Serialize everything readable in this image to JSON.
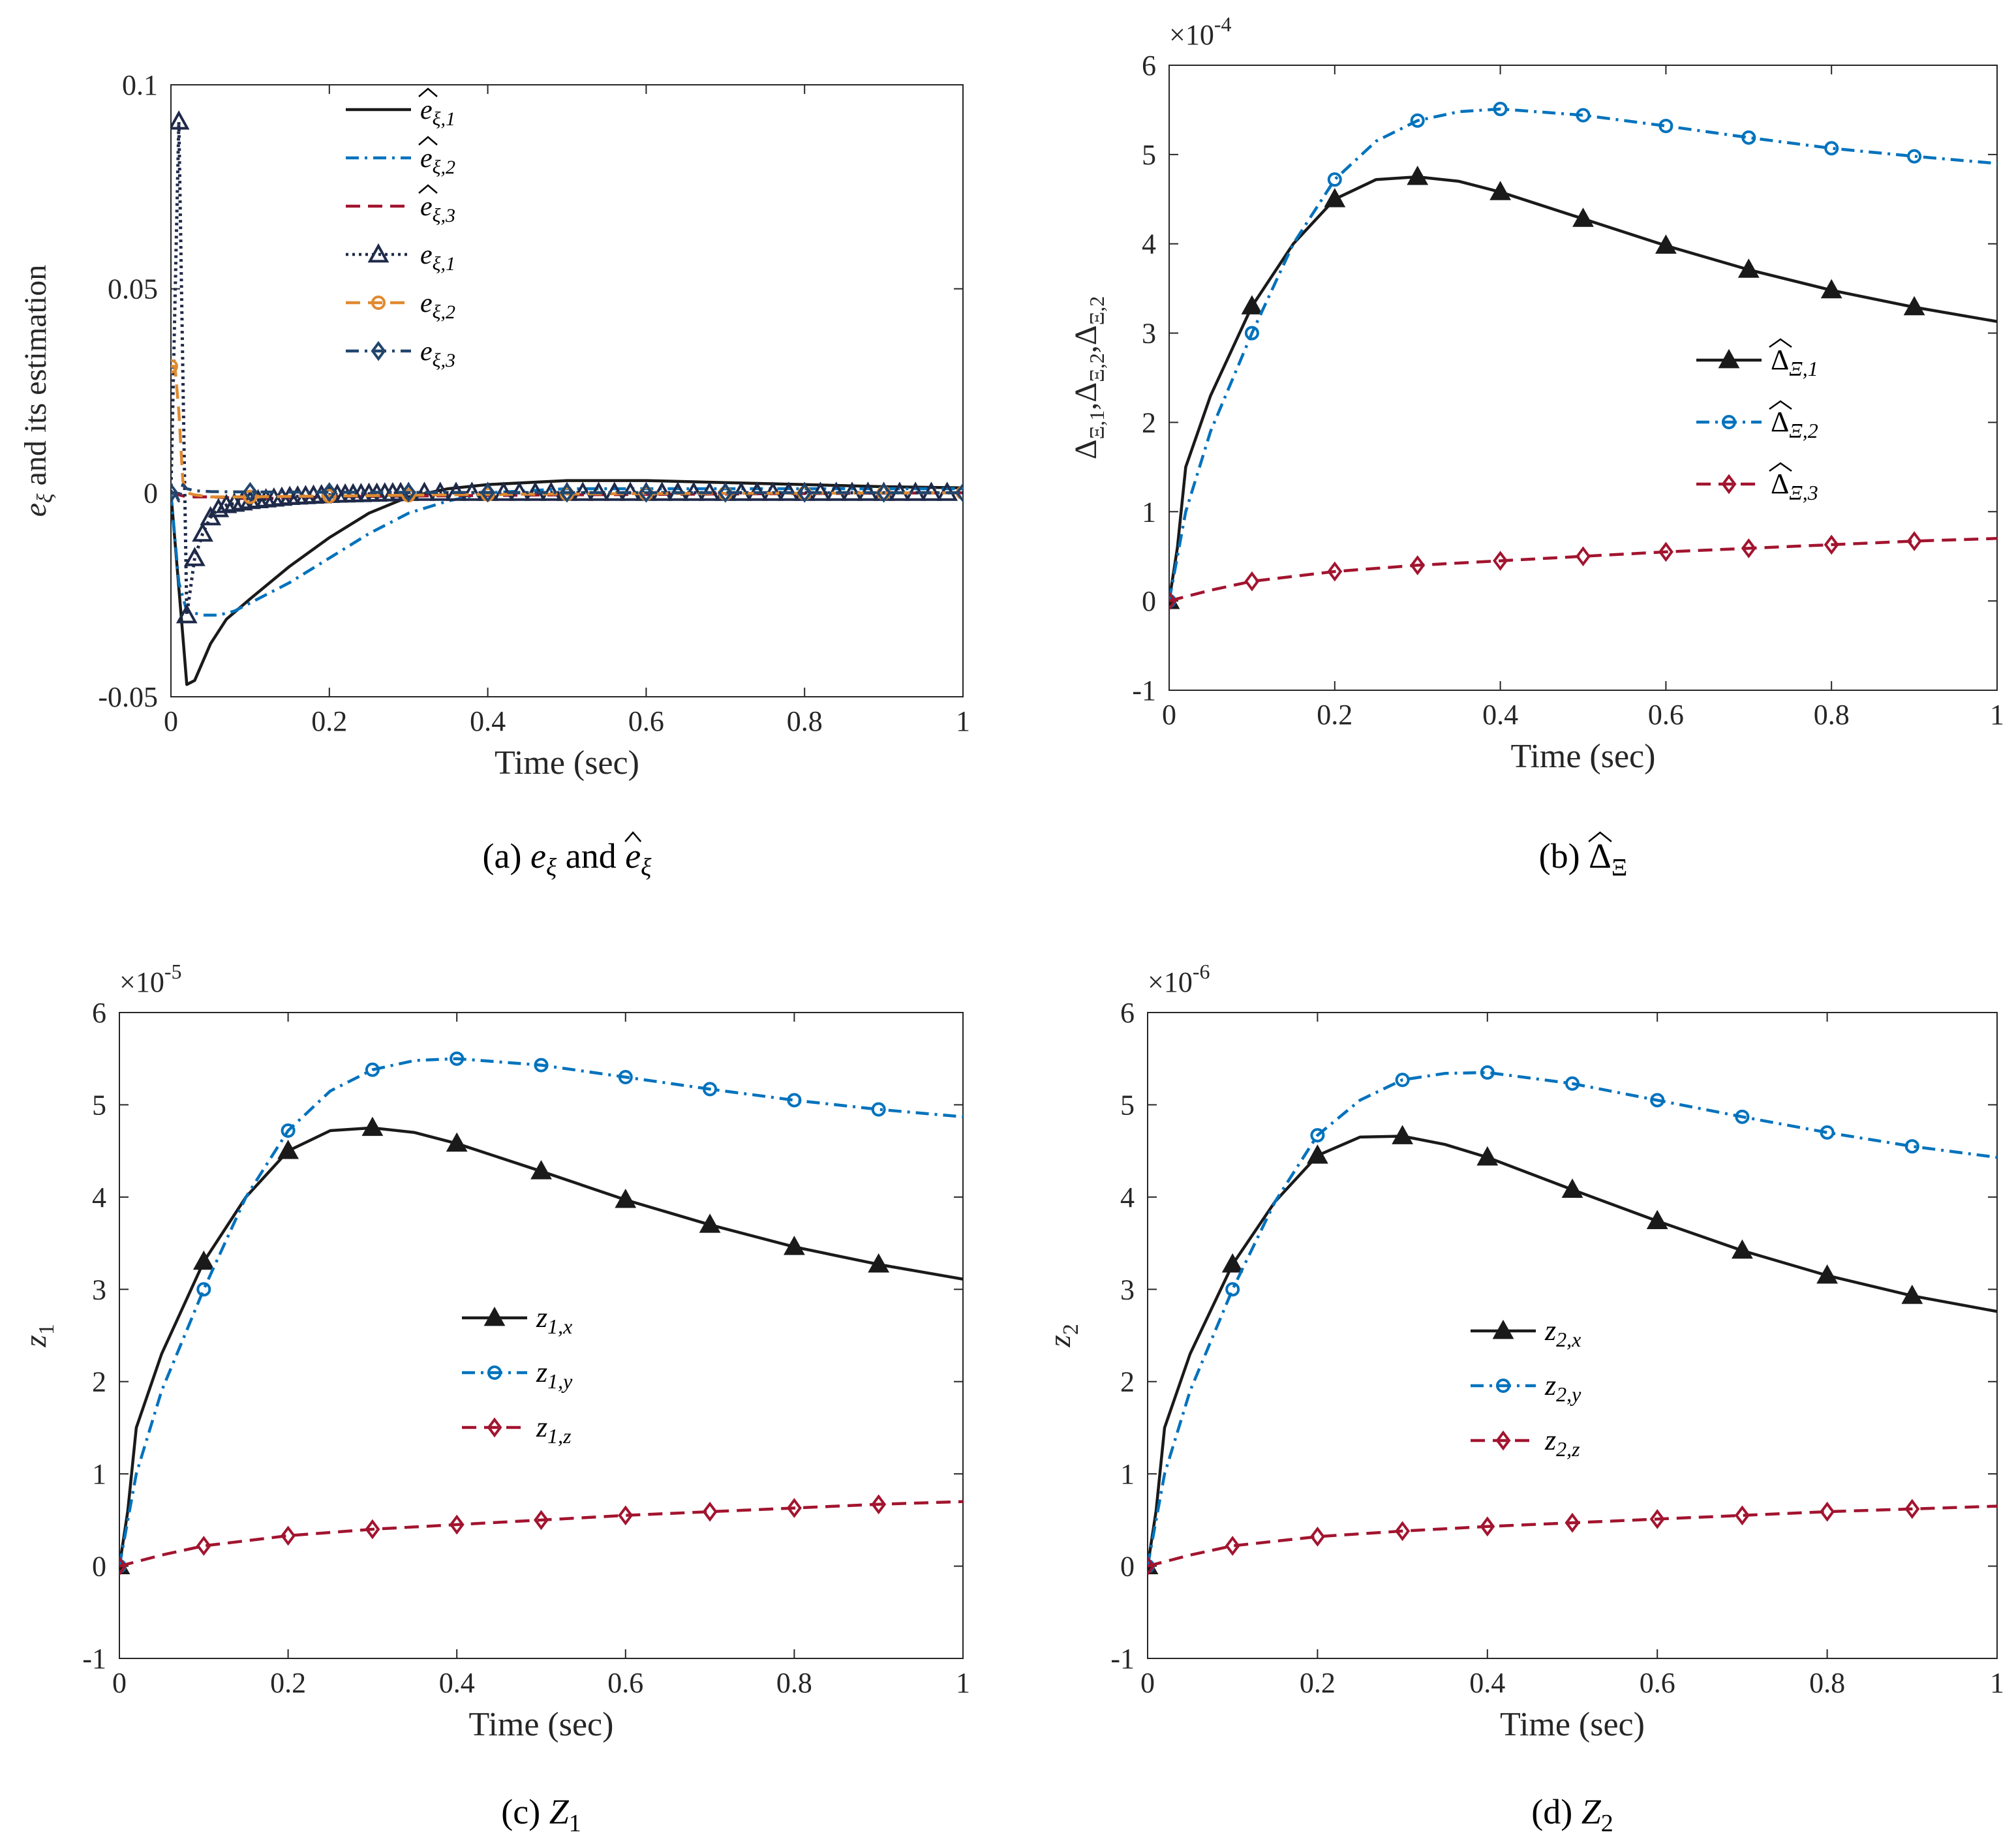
{
  "chart_data": [
    {
      "type": "line",
      "caption": "(a)  e_ξ and ê_ξ",
      "caption_parts": [
        "(a)",
        "e",
        "ξ",
        "and",
        "e",
        "ξ"
      ],
      "xlabel": "Time (sec)",
      "ylabel": "e_ξ and its estimation",
      "ylabel_parts": [
        "e",
        "ξ",
        "and its estimation"
      ],
      "multiplier": "",
      "xlim": [
        0,
        1
      ],
      "ylim": [
        -0.05,
        0.1
      ],
      "xticks": [
        0,
        0.2,
        0.4,
        0.6,
        0.8,
        1
      ],
      "xtick_labels": [
        "0",
        "0.2",
        "0.4",
        "0.6",
        "0.8",
        "1"
      ],
      "yticks": [
        -0.05,
        0,
        0.05,
        0.1
      ],
      "ytick_labels": [
        "-0.05",
        "0",
        "0.05",
        "0.1"
      ],
      "legend_position": "top-center",
      "series": [
        {
          "name": "ê_ξ,1",
          "label_main": "e",
          "label_sub": "ξ,1",
          "hat": true,
          "color": "#1a1a1a",
          "dash": "solid",
          "marker": "none",
          "x": [
            0,
            0.015,
            0.02,
            0.03,
            0.05,
            0.07,
            0.1,
            0.15,
            0.2,
            0.25,
            0.3,
            0.35,
            0.4,
            0.5,
            0.6,
            0.7,
            0.8,
            0.9,
            1.0
          ],
          "y": [
            0,
            -0.035,
            -0.047,
            -0.046,
            -0.037,
            -0.031,
            -0.026,
            -0.018,
            -0.011,
            -0.005,
            -0.001,
            0.001,
            0.002,
            0.003,
            0.003,
            0.0025,
            0.002,
            0.0015,
            0.0012
          ]
        },
        {
          "name": "ê_ξ,2",
          "label_main": "e",
          "label_sub": "ξ,2",
          "hat": true,
          "color": "#0072bd",
          "dash": "dashdot",
          "marker": "none",
          "x": [
            0,
            0.01,
            0.02,
            0.04,
            0.06,
            0.08,
            0.1,
            0.15,
            0.2,
            0.25,
            0.3,
            0.35,
            0.4,
            0.5,
            0.6,
            0.7,
            0.8,
            0.9,
            1.0
          ],
          "y": [
            0,
            -0.022,
            -0.029,
            -0.03,
            -0.03,
            -0.029,
            -0.027,
            -0.022,
            -0.016,
            -0.01,
            -0.005,
            -0.002,
            0,
            0.001,
            0.001,
            0.001,
            0.001,
            0.001,
            0.001
          ]
        },
        {
          "name": "ê_ξ,3",
          "label_main": "e",
          "label_sub": "ξ,3",
          "hat": true,
          "color": "#a2142f",
          "dash": "dashed",
          "marker": "none",
          "x": [
            0,
            0.02,
            0.05,
            0.1,
            0.2,
            0.3,
            0.5,
            0.7,
            1.0
          ],
          "y": [
            0,
            -0.001,
            -0.001,
            -0.0015,
            -0.001,
            -0.0008,
            -0.0005,
            -0.0003,
            0
          ]
        },
        {
          "name": "e_ξ,1",
          "label_main": "e",
          "label_sub": "ξ,1",
          "hat": false,
          "color": "#1f2a4a",
          "dash": "dotted",
          "marker": "triangle",
          "x": [
            0,
            0.01,
            0.015,
            0.02,
            0.03,
            0.04,
            0.05,
            0.06,
            0.07,
            0.1,
            0.15,
            0.2,
            0.3,
            0.4,
            0.5,
            0.6,
            0.7,
            0.8,
            0.9,
            1.0
          ],
          "y": [
            0,
            0.091,
            0.03,
            -0.03,
            -0.016,
            -0.01,
            -0.006,
            -0.004,
            -0.003,
            -0.002,
            -0.001,
            -0.0005,
            0,
            0,
            0,
            0,
            0,
            0,
            0,
            0
          ],
          "markers_x": [
            0.01,
            0.02,
            0.03,
            0.04,
            0.05,
            0.06,
            0.07,
            0.08,
            0.09,
            0.1,
            0.11,
            0.12,
            0.13,
            0.14,
            0.15,
            0.16,
            0.17,
            0.18,
            0.19,
            0.2,
            0.21,
            0.22,
            0.23,
            0.24,
            0.25,
            0.26,
            0.27,
            0.28,
            0.29,
            0.3,
            0.32,
            0.34,
            0.36,
            0.38,
            0.4,
            0.42,
            0.44,
            0.46,
            0.48,
            0.5,
            0.52,
            0.54,
            0.56,
            0.58,
            0.6,
            0.62,
            0.64,
            0.66,
            0.68,
            0.7,
            0.72,
            0.74,
            0.76,
            0.78,
            0.8,
            0.82,
            0.84,
            0.86,
            0.88,
            0.9,
            0.92,
            0.94,
            0.96,
            0.98
          ]
        },
        {
          "name": "e_ξ,2",
          "label_main": "e",
          "label_sub": "ξ,2",
          "hat": false,
          "color": "#e08a30",
          "dash": "dashed",
          "marker": "circle",
          "x": [
            0,
            0.005,
            0.01,
            0.015,
            0.02,
            0.03,
            0.05,
            0.1,
            0.2,
            0.4,
            0.6,
            1.0
          ],
          "y": [
            0.031,
            0.031,
            0.02,
            0.003,
            0,
            -0.0005,
            -0.001,
            -0.001,
            -0.0008,
            -0.0004,
            -0.0002,
            0
          ],
          "markers_x": [
            0,
            0.1,
            0.2,
            0.3,
            0.4,
            0.5,
            0.6,
            0.7,
            0.8,
            0.9,
            1.0
          ]
        },
        {
          "name": "e_ξ,3",
          "label_main": "e",
          "label_sub": "ξ,3",
          "hat": false,
          "color": "#22466e",
          "dash": "dashdot",
          "marker": "diamond",
          "x": [
            0,
            0.005,
            0.01,
            0.015,
            0.02,
            0.03,
            0.05,
            0.1,
            0.3,
            0.6,
            1.0
          ],
          "y": [
            0,
            0,
            -0.002,
            0.002,
            0.001,
            0.0005,
            0.0003,
            0.0002,
            0.0001,
            0,
            0
          ],
          "markers_x": [
            0,
            0.1,
            0.2,
            0.3,
            0.4,
            0.5,
            0.6,
            0.7,
            0.8,
            0.9,
            1.0
          ]
        }
      ]
    },
    {
      "type": "line",
      "caption": "(b)  Δ̂_Ξ",
      "caption_parts": [
        "(b)",
        "Δ",
        "Ξ"
      ],
      "xlabel": "Time (sec)",
      "ylabel": "Δ̂_Ξ,1, Δ̂_Ξ,2, Δ̂_Ξ,2",
      "ylabel_parts": [
        "Δ",
        "Ξ,1",
        ",",
        "Δ",
        "Ξ,2",
        ",",
        "Δ",
        "Ξ,2"
      ],
      "multiplier": "×10⁻⁴",
      "multiplier_parts": [
        "×10",
        "-4"
      ],
      "xlim": [
        0,
        1
      ],
      "ylim": [
        -1,
        6
      ],
      "xticks": [
        0,
        0.2,
        0.4,
        0.6,
        0.8,
        1
      ],
      "xtick_labels": [
        "0",
        "0.2",
        "0.4",
        "0.6",
        "0.8",
        "1"
      ],
      "yticks": [
        -1,
        0,
        1,
        2,
        3,
        4,
        5,
        6
      ],
      "ytick_labels": [
        "-1",
        "0",
        "1",
        "2",
        "3",
        "4",
        "5",
        "6"
      ],
      "legend_position": "center-right",
      "series": [
        {
          "name": "Δ̂_Ξ,1",
          "label_main": "Δ",
          "label_sub": "Ξ,1",
          "hat": true,
          "color": "#1a1a1a",
          "dash": "solid",
          "marker": "triangle",
          "x": [
            0,
            0.01,
            0.02,
            0.05,
            0.1,
            0.15,
            0.2,
            0.25,
            0.3,
            0.35,
            0.4,
            0.5,
            0.6,
            0.7,
            0.8,
            0.9,
            1.0
          ],
          "y": [
            0,
            0.6,
            1.5,
            2.3,
            3.3,
            4.0,
            4.5,
            4.72,
            4.75,
            4.7,
            4.58,
            4.28,
            3.98,
            3.71,
            3.48,
            3.29,
            3.13
          ],
          "markers_x": [
            0,
            0.1,
            0.2,
            0.3,
            0.4,
            0.5,
            0.6,
            0.7,
            0.8,
            0.9
          ]
        },
        {
          "name": "Δ̂_Ξ,2",
          "label_main": "Δ",
          "label_sub": "Ξ,2",
          "hat": true,
          "color": "#0072bd",
          "dash": "dashdot",
          "marker": "circle",
          "x": [
            0,
            0.02,
            0.05,
            0.1,
            0.15,
            0.2,
            0.25,
            0.3,
            0.35,
            0.4,
            0.5,
            0.6,
            0.7,
            0.8,
            0.9,
            1.0
          ],
          "y": [
            0,
            1.0,
            1.9,
            3.0,
            4.0,
            4.72,
            5.15,
            5.38,
            5.48,
            5.51,
            5.44,
            5.32,
            5.19,
            5.07,
            4.98,
            4.9
          ],
          "markers_x": [
            0,
            0.1,
            0.2,
            0.3,
            0.4,
            0.5,
            0.6,
            0.7,
            0.8,
            0.9
          ]
        },
        {
          "name": "Δ̂_Ξ,3",
          "label_main": "Δ",
          "label_sub": "Ξ,3",
          "hat": true,
          "color": "#a2142f",
          "dash": "dashed",
          "marker": "diamond",
          "x": [
            0,
            0.05,
            0.1,
            0.2,
            0.3,
            0.4,
            0.5,
            0.6,
            0.7,
            0.8,
            0.9,
            1.0
          ],
          "y": [
            0,
            0.12,
            0.22,
            0.33,
            0.4,
            0.45,
            0.5,
            0.55,
            0.59,
            0.63,
            0.67,
            0.7
          ],
          "markers_x": [
            0,
            0.1,
            0.2,
            0.3,
            0.4,
            0.5,
            0.6,
            0.7,
            0.8,
            0.9
          ]
        }
      ]
    },
    {
      "type": "line",
      "caption": "(c)  Z₁",
      "caption_parts": [
        "(c)",
        "Z",
        "1"
      ],
      "xlabel": "Time (sec)",
      "ylabel": "z₁",
      "ylabel_parts": [
        "z",
        "1"
      ],
      "multiplier": "×10⁻⁵",
      "multiplier_parts": [
        "×10",
        "-5"
      ],
      "xlim": [
        0,
        1
      ],
      "ylim": [
        -1,
        6
      ],
      "xticks": [
        0,
        0.2,
        0.4,
        0.6,
        0.8,
        1
      ],
      "xtick_labels": [
        "0",
        "0.2",
        "0.4",
        "0.6",
        "0.8",
        "1"
      ],
      "yticks": [
        -1,
        0,
        1,
        2,
        3,
        4,
        5,
        6
      ],
      "ytick_labels": [
        "-1",
        "0",
        "1",
        "2",
        "3",
        "4",
        "5",
        "6"
      ],
      "legend_position": "center",
      "series": [
        {
          "name": "z_1,x",
          "label_main": "z",
          "label_sub": "1,x",
          "hat": false,
          "color": "#1a1a1a",
          "dash": "solid",
          "marker": "triangle",
          "x": [
            0,
            0.01,
            0.02,
            0.05,
            0.1,
            0.15,
            0.2,
            0.25,
            0.3,
            0.35,
            0.4,
            0.5,
            0.6,
            0.7,
            0.8,
            0.9,
            1.0
          ],
          "y": [
            0,
            0.6,
            1.5,
            2.3,
            3.3,
            4.0,
            4.5,
            4.72,
            4.75,
            4.7,
            4.58,
            4.28,
            3.97,
            3.7,
            3.46,
            3.27,
            3.11
          ],
          "markers_x": [
            0,
            0.1,
            0.2,
            0.3,
            0.4,
            0.5,
            0.6,
            0.7,
            0.8,
            0.9
          ]
        },
        {
          "name": "z_1,y",
          "label_main": "z",
          "label_sub": "1,y",
          "hat": false,
          "color": "#0072bd",
          "dash": "dashdot",
          "marker": "circle",
          "x": [
            0,
            0.02,
            0.05,
            0.1,
            0.15,
            0.2,
            0.25,
            0.3,
            0.35,
            0.4,
            0.5,
            0.6,
            0.7,
            0.8,
            0.9,
            1.0
          ],
          "y": [
            0,
            1.0,
            1.9,
            3.0,
            4.0,
            4.72,
            5.15,
            5.38,
            5.48,
            5.5,
            5.43,
            5.3,
            5.17,
            5.05,
            4.95,
            4.87
          ],
          "markers_x": [
            0,
            0.1,
            0.2,
            0.3,
            0.4,
            0.5,
            0.6,
            0.7,
            0.8,
            0.9
          ]
        },
        {
          "name": "z_1,z",
          "label_main": "z",
          "label_sub": "1,z",
          "hat": false,
          "color": "#a2142f",
          "dash": "dashed",
          "marker": "diamond",
          "x": [
            0,
            0.05,
            0.1,
            0.2,
            0.3,
            0.4,
            0.5,
            0.6,
            0.7,
            0.8,
            0.9,
            1.0
          ],
          "y": [
            0,
            0.12,
            0.22,
            0.33,
            0.4,
            0.45,
            0.5,
            0.55,
            0.59,
            0.63,
            0.67,
            0.7
          ],
          "markers_x": [
            0,
            0.1,
            0.2,
            0.3,
            0.4,
            0.5,
            0.6,
            0.7,
            0.8,
            0.9
          ]
        }
      ]
    },
    {
      "type": "line",
      "caption": "(d)  Z₂",
      "caption_parts": [
        "(d)",
        "Z",
        "2"
      ],
      "xlabel": "Time (sec)",
      "ylabel": "z₂",
      "ylabel_parts": [
        "z",
        "2"
      ],
      "multiplier": "×10⁻⁶",
      "multiplier_parts": [
        "×10",
        "-6"
      ],
      "xlim": [
        0,
        1
      ],
      "ylim": [
        -1,
        6
      ],
      "xticks": [
        0,
        0.2,
        0.4,
        0.6,
        0.8,
        1
      ],
      "xtick_labels": [
        "0",
        "0.2",
        "0.4",
        "0.6",
        "0.8",
        "1"
      ],
      "yticks": [
        -1,
        0,
        1,
        2,
        3,
        4,
        5,
        6
      ],
      "ytick_labels": [
        "-1",
        "0",
        "1",
        "2",
        "3",
        "4",
        "5",
        "6"
      ],
      "legend_position": "center",
      "series": [
        {
          "name": "z_2,x",
          "label_main": "z",
          "label_sub": "2,x",
          "hat": false,
          "color": "#1a1a1a",
          "dash": "solid",
          "marker": "triangle",
          "x": [
            0,
            0.01,
            0.02,
            0.05,
            0.1,
            0.15,
            0.2,
            0.25,
            0.3,
            0.35,
            0.4,
            0.5,
            0.6,
            0.7,
            0.8,
            0.9,
            1.0
          ],
          "y": [
            0,
            0.6,
            1.5,
            2.3,
            3.27,
            3.95,
            4.45,
            4.65,
            4.66,
            4.57,
            4.43,
            4.08,
            3.74,
            3.42,
            3.15,
            2.93,
            2.76
          ],
          "markers_x": [
            0,
            0.1,
            0.2,
            0.3,
            0.4,
            0.5,
            0.6,
            0.7,
            0.8,
            0.9
          ]
        },
        {
          "name": "z_2,y",
          "label_main": "z",
          "label_sub": "2,y",
          "hat": false,
          "color": "#0072bd",
          "dash": "dashdot",
          "marker": "circle",
          "x": [
            0,
            0.02,
            0.05,
            0.1,
            0.15,
            0.2,
            0.25,
            0.3,
            0.35,
            0.4,
            0.5,
            0.6,
            0.7,
            0.8,
            0.9,
            1.0
          ],
          "y": [
            0,
            1.0,
            1.9,
            3.0,
            3.95,
            4.67,
            5.05,
            5.27,
            5.34,
            5.35,
            5.23,
            5.05,
            4.87,
            4.7,
            4.55,
            4.43
          ],
          "markers_x": [
            0,
            0.1,
            0.2,
            0.3,
            0.4,
            0.5,
            0.6,
            0.7,
            0.8,
            0.9
          ]
        },
        {
          "name": "z_2,z",
          "label_main": "z",
          "label_sub": "2,z",
          "hat": false,
          "color": "#a2142f",
          "dash": "dashed",
          "marker": "diamond",
          "x": [
            0,
            0.05,
            0.1,
            0.2,
            0.3,
            0.4,
            0.5,
            0.6,
            0.7,
            0.8,
            0.9,
            1.0
          ],
          "y": [
            0,
            0.12,
            0.22,
            0.32,
            0.38,
            0.43,
            0.47,
            0.51,
            0.55,
            0.59,
            0.62,
            0.65
          ],
          "markers_x": [
            0,
            0.1,
            0.2,
            0.3,
            0.4,
            0.5,
            0.6,
            0.7,
            0.8,
            0.9
          ]
        }
      ]
    }
  ]
}
